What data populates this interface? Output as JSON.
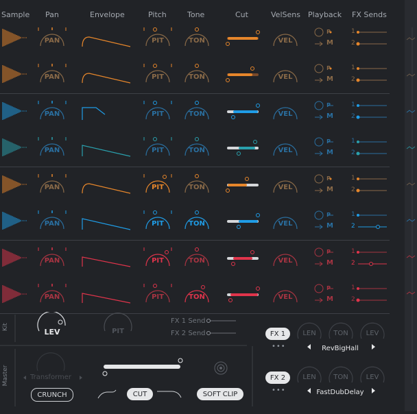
{
  "headers": {
    "sample": "Sample",
    "pan": "Pan",
    "envelope": "Envelope",
    "pitch": "Pitch",
    "tone": "Tone",
    "cut": "Cut",
    "velsens": "VelSens",
    "playback": "Playback",
    "fx_sends": "FX Sends"
  },
  "row_labels": {
    "pan": "PAN",
    "pitch": "PIT",
    "tone": "TON",
    "velsens": "VEL",
    "playback_mode": "M",
    "playback_p": "P",
    "send1": "1",
    "send2": "2"
  },
  "colors": {
    "orange": "#e6862b",
    "orange_dim": "#8a6a48",
    "blue": "#1f9ce6",
    "blue_dim": "#2a6fa0",
    "teal": "#2aa0ad",
    "red": "#e0344b",
    "red_dim": "#a83442",
    "brown": "#7a4a2a"
  },
  "rows": [
    {
      "color": "orange",
      "pitch_active": false,
      "tone_active": false,
      "send2_active": false
    },
    {
      "color": "orange",
      "pitch_active": false,
      "tone_active": false,
      "send2_active": false
    },
    {
      "color": "blue",
      "pitch_active": false,
      "tone_active": false,
      "send2_active": false
    },
    {
      "color": "teal",
      "pitch_active": false,
      "tone_active": false,
      "send2_active": false
    },
    {
      "color": "orange",
      "pitch_active": true,
      "tone_active": false,
      "send2_active": false
    },
    {
      "color": "blue",
      "pitch_active": true,
      "tone_active": true,
      "send2_active": true
    },
    {
      "color": "red",
      "pitch_active": true,
      "tone_active": false,
      "send2_active": true
    },
    {
      "color": "red",
      "pitch_active": false,
      "tone_active": true,
      "send2_active": false
    }
  ],
  "kit": {
    "side_label": "Kit",
    "lev_label": "LEV",
    "pit_label": "PIT",
    "fx1_send": "FX 1 Send",
    "fx2_send": "FX 2 Send"
  },
  "master": {
    "side_label": "Master",
    "transformer": "Transformer",
    "crunch": "CRUNCH",
    "cut": "CUT",
    "soft_clip": "SOFT CLIP"
  },
  "fx": [
    {
      "button": "FX 1",
      "knobs": [
        "LEN",
        "TON",
        "LEV"
      ],
      "preset": "RevBigHall",
      "more": "•••"
    },
    {
      "button": "FX 2",
      "knobs": [
        "LEN",
        "TON",
        "LEV"
      ],
      "preset": "FastDubDelay",
      "more": "•••"
    }
  ]
}
